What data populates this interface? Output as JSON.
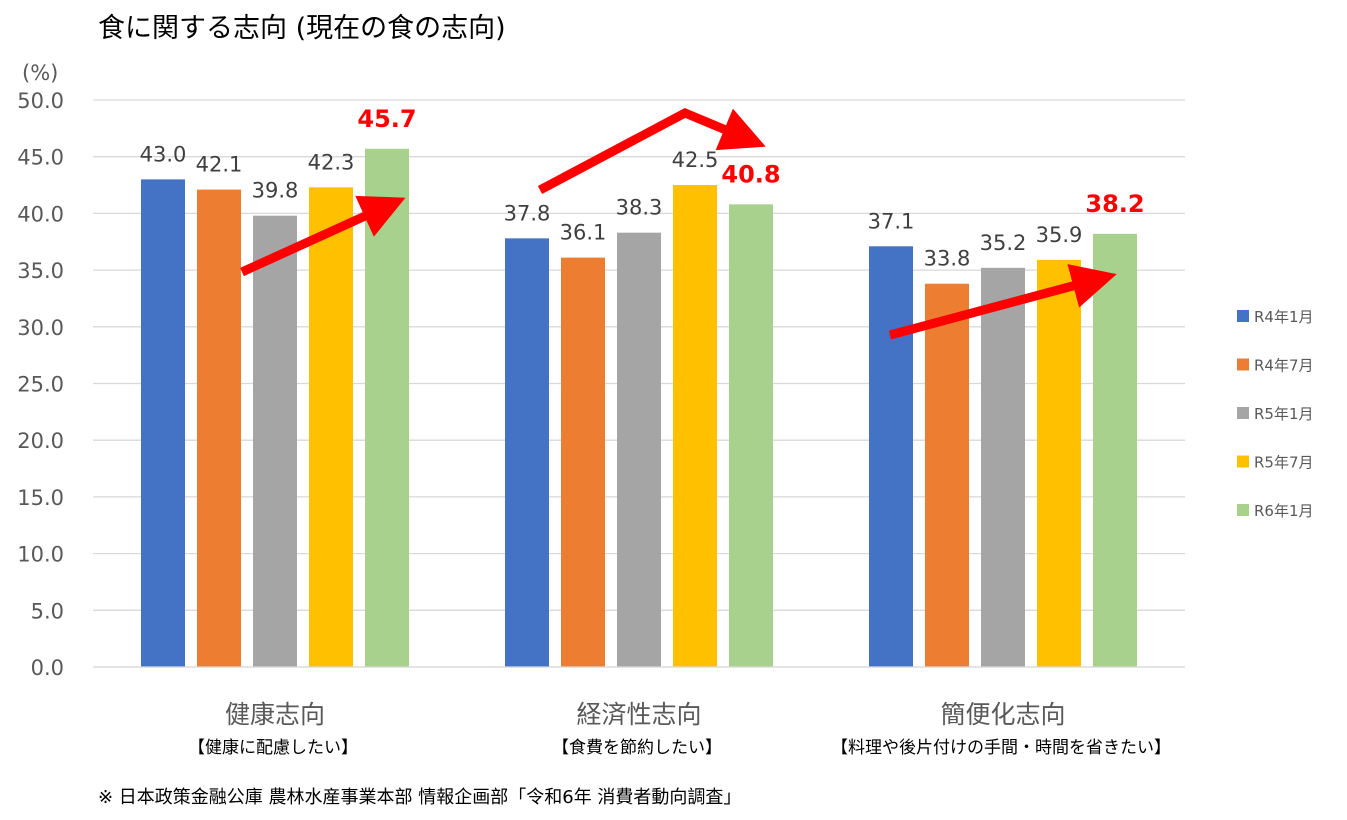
{
  "chart_data": {
    "type": "bar",
    "title": "食に関する志向 (現在の食の志向)",
    "ylabel": "(%)",
    "ylim": [
      0,
      50
    ],
    "yticks": [
      "0.0",
      "5.0",
      "10.0",
      "15.0",
      "20.0",
      "25.0",
      "30.0",
      "35.0",
      "40.0",
      "45.0",
      "50.0"
    ],
    "grid": true,
    "legend_position": "right",
    "categories": [
      "健康志向",
      "経済性志向",
      "簡便化志向"
    ],
    "category_subtitles": [
      "【健康に配慮したい】",
      "【食費を節約したい】",
      "【料理や後片付けの手間・時間を省きたい】"
    ],
    "series": [
      {
        "name": "R4年1月",
        "color": "#4472C4",
        "values": [
          43.0,
          37.8,
          37.1
        ]
      },
      {
        "name": "R4年7月",
        "color": "#ED7D31",
        "values": [
          42.1,
          36.1,
          33.8
        ]
      },
      {
        "name": "R5年1月",
        "color": "#A5A5A5",
        "values": [
          39.8,
          38.3,
          35.2
        ]
      },
      {
        "name": "R5年7月",
        "color": "#FFC000",
        "values": [
          42.3,
          42.5,
          35.9
        ]
      },
      {
        "name": "R6年1月",
        "color": "#A9D18E",
        "values": [
          45.7,
          40.8,
          38.2
        ],
        "highlight_labels": true,
        "highlight_color": "#FF0000"
      }
    ],
    "annotations": [
      "red trend arrows in each group"
    ],
    "source_note": "※ 日本政策金融公庫 農林水産事業本部 情報企画部「令和6年 消費者動向調査」"
  }
}
